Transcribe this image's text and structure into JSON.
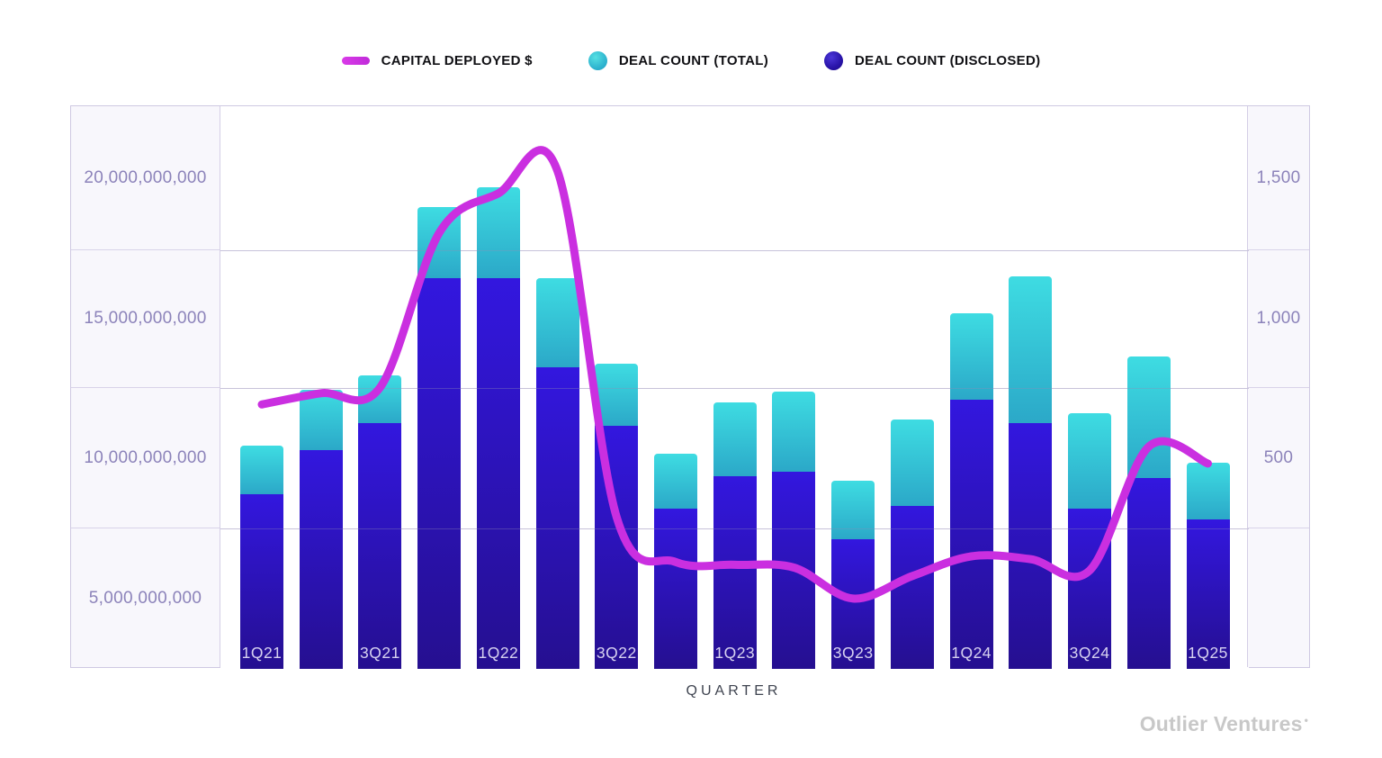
{
  "legend": {
    "items": [
      {
        "label": "CAPITAL DEPLOYED $",
        "swatch": "line-swatch",
        "color": "#ca2fe0"
      },
      {
        "label": "DEAL COUNT (TOTAL)",
        "swatch": "circle-swatch",
        "color": "#30c6d4"
      },
      {
        "label": "DEAL COUNT (DISCLOSED)",
        "swatch": "circle-swatch",
        "color": "#2c15c0"
      }
    ]
  },
  "axes": {
    "left_labels": [
      "20,000,000,000",
      "15,000,000,000",
      "10,000,000,000",
      "5,000,000,000"
    ],
    "right_labels": [
      "1,500",
      "1,000",
      "500",
      ""
    ]
  },
  "x_axis_title": "QUARTER",
  "watermark": {
    "text": "Outlier Ventures",
    "mark": "•"
  },
  "colors": {
    "line": "#ca2fe0",
    "bar_total_teal": "#30c6d4",
    "bar_disclosed_blue": "#2c15c0",
    "axis_text": "#8c83ba",
    "panel_bg": "#f8f7fc",
    "border": "#d5cfe6"
  },
  "chart_data": {
    "type": "combo (stacked bar + line)",
    "categories": [
      "1Q21",
      "2Q21",
      "3Q21",
      "4Q21",
      "1Q22",
      "2Q22",
      "3Q22",
      "4Q22",
      "1Q23",
      "2Q23",
      "3Q23",
      "4Q23",
      "1Q24",
      "2Q24",
      "3Q24",
      "4Q24",
      "1Q25"
    ],
    "x_tick_labels_shown": [
      "1Q21",
      "3Q21",
      "1Q22",
      "3Q22",
      "1Q23",
      "3Q23",
      "1Q24",
      "3Q24",
      "1Q25"
    ],
    "xlabel": "QUARTER",
    "grid": "horizontal",
    "legend_position": "top-center",
    "left_axis": {
      "ticks": [
        "20,000,000,000",
        "15,000,000,000",
        "10,000,000,000",
        "5,000,000,000"
      ],
      "range": [
        0,
        20000000000
      ],
      "series": "CAPITAL DEPLOYED $"
    },
    "right_axis": {
      "ticks": [
        "1,500",
        "1,000",
        "500"
      ],
      "range": [
        0,
        2016
      ],
      "series": "DEAL COUNT"
    },
    "series": [
      {
        "name": "CAPITAL DEPLOYED $",
        "type": "line",
        "axis": "left",
        "color": "#ca2fe0",
        "values": [
          9400000000,
          9800000000,
          10000000000,
          15500000000,
          16900000000,
          17700000000,
          5400000000,
          3800000000,
          3700000000,
          3600000000,
          2500000000,
          3300000000,
          4000000000,
          3900000000,
          3500000000,
          7900000000,
          7300000000
        ]
      },
      {
        "name": "DEAL COUNT (TOTAL)",
        "type": "bar",
        "stack": "deals",
        "axis": "right",
        "color": "#30c6d4",
        "note": "total bar height (includes disclosed portion); teal segment = total - disclosed",
        "values": [
          800,
          1000,
          1050,
          1655,
          1725,
          1400,
          1095,
          770,
          955,
          995,
          675,
          895,
          1275,
          1405,
          915,
          1120,
          740
        ]
      },
      {
        "name": "DEAL COUNT (DISCLOSED)",
        "type": "bar",
        "stack": "deals",
        "axis": "right",
        "color": "#2c15c0",
        "values": [
          625,
          785,
          880,
          1400,
          1400,
          1080,
          870,
          575,
          690,
          705,
          465,
          585,
          965,
          880,
          575,
          685,
          535
        ]
      }
    ]
  }
}
